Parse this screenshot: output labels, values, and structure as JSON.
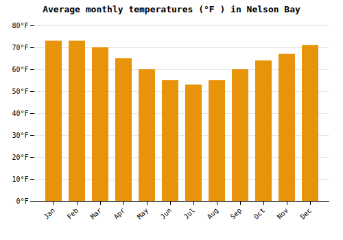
{
  "chart_data": {
    "type": "bar",
    "title": "Average monthly temperatures (°F ) in Nelson Bay",
    "categories": [
      "Jan",
      "Feb",
      "Mar",
      "Apr",
      "May",
      "Jun",
      "Jul",
      "Aug",
      "Sep",
      "Oct",
      "Nov",
      "Dec"
    ],
    "values": [
      73,
      73,
      70,
      65,
      60,
      55,
      53,
      55,
      60,
      64,
      67,
      71
    ],
    "color": "#E8940A",
    "ylim": [
      0,
      80
    ],
    "yticks": [
      {
        "value": 0,
        "label": "0°F"
      },
      {
        "value": 10,
        "label": "10°F"
      },
      {
        "value": 20,
        "label": "20°F"
      },
      {
        "value": 30,
        "label": "30°F"
      },
      {
        "value": 40,
        "label": "40°F"
      },
      {
        "value": 50,
        "label": "50°F"
      },
      {
        "value": 60,
        "label": "60°F"
      },
      {
        "value": 70,
        "label": "70°F"
      },
      {
        "value": 80,
        "label": "80°F"
      }
    ],
    "grid": true
  }
}
